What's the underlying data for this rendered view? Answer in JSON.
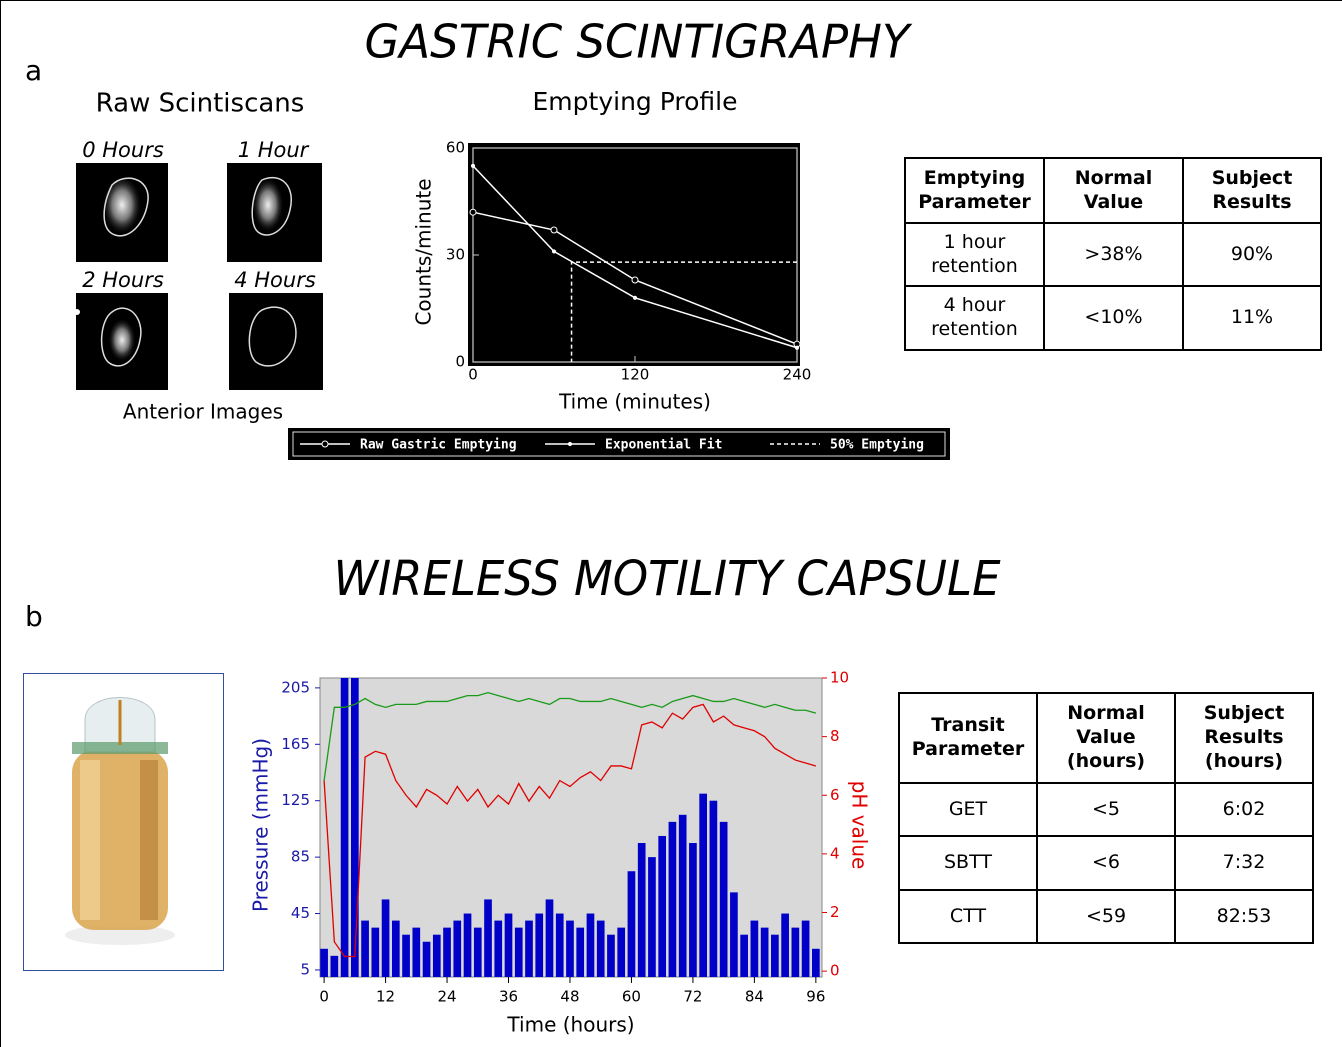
{
  "panel_a": {
    "label": "a",
    "title": "GASTRIC SCINTIGRAPHY",
    "scans_title": "Raw Scintiscans",
    "scan_labels": [
      "0 Hours",
      "1 Hour",
      "2 Hours",
      "4 Hours"
    ],
    "scans_caption": "Anterior Images",
    "table": {
      "header": [
        "Emptying Parameter",
        "Normal Value",
        "Subject Results"
      ],
      "rows": [
        [
          "1 hour retention",
          ">38%",
          "90%"
        ],
        [
          "4 hour retention",
          "<10%",
          "11%"
        ]
      ]
    }
  },
  "panel_b": {
    "label": "b",
    "title": "WIRELESS MOTILITY CAPSULE",
    "table": {
      "header": [
        "Transit Parameter",
        "Normal Value (hours)",
        "Subject Results (hours)"
      ],
      "rows": [
        [
          "GET",
          "<5",
          "6:02"
        ],
        [
          "SBTT",
          "<6",
          "7:32"
        ],
        [
          "CTT",
          "<59",
          "82:53"
        ]
      ]
    }
  },
  "chart_data": [
    {
      "type": "line",
      "title": "Emptying Profile",
      "x_label": "Time (minutes)",
      "y_label": "Counts/minute",
      "xlim": [
        0,
        240
      ],
      "xticks": [
        0,
        120,
        240
      ],
      "ylim": [
        0,
        60
      ],
      "yticks": [
        0,
        30,
        60
      ],
      "background": "#000000",
      "legend": "below",
      "series": [
        {
          "name": "Raw Gastric Emptying",
          "color": "#ffffff",
          "marker": "circle",
          "x": [
            0,
            60,
            120,
            240
          ],
          "values": [
            42,
            37,
            23,
            5
          ]
        },
        {
          "name": "Exponential Fit",
          "color": "#ffffff",
          "marker": "dot",
          "x": [
            0,
            60,
            120,
            240
          ],
          "values": [
            55,
            31,
            18,
            4
          ]
        },
        {
          "name": "50% Emptying",
          "color": "#ffffff",
          "dash": true,
          "x": [
            240,
            73,
            73
          ],
          "values": [
            28,
            28,
            0
          ]
        }
      ]
    },
    {
      "type": "line",
      "x_label": "Time (hours)",
      "y_label": "Pressure (mmHg)",
      "y2_label": "pH value",
      "y_label_color": "#1a1aa8",
      "y2_label_color": "#e00000",
      "xlim": [
        -0.8,
        97.2
      ],
      "xticks": [
        0,
        12,
        24,
        36,
        48,
        60,
        72,
        84,
        96
      ],
      "ylim": [
        0,
        212
      ],
      "yticks": [
        5,
        45,
        85,
        125,
        165,
        205
      ],
      "y2lim": [
        -0.2,
        10
      ],
      "y2ticks": [
        0,
        2,
        4,
        6,
        8,
        10
      ],
      "background": "#d9d9d9",
      "x": [
        0,
        2,
        4,
        6,
        8,
        10,
        12,
        14,
        16,
        18,
        20,
        22,
        24,
        26,
        28,
        30,
        32,
        34,
        36,
        38,
        40,
        42,
        44,
        46,
        48,
        50,
        52,
        54,
        56,
        58,
        60,
        62,
        64,
        66,
        68,
        70,
        72,
        74,
        76,
        78,
        80,
        82,
        84,
        86,
        88,
        90,
        92,
        94,
        96
      ],
      "series": [
        {
          "type": "bar",
          "color": "#0000c8",
          "values": [
            20,
            15,
            212,
            212,
            40,
            35,
            55,
            40,
            30,
            35,
            25,
            30,
            35,
            40,
            45,
            35,
            55,
            40,
            45,
            35,
            40,
            45,
            55,
            45,
            40,
            35,
            45,
            40,
            30,
            35,
            75,
            95,
            85,
            100,
            110,
            115,
            95,
            130,
            125,
            110,
            60,
            30,
            40,
            35,
            30,
            45,
            35,
            40,
            20
          ]
        },
        {
          "type": "line",
          "axis": "y2",
          "color": "#1a9a1a",
          "values": [
            6.5,
            9.0,
            9.0,
            9.1,
            9.3,
            9.1,
            9.0,
            9.1,
            9.1,
            9.1,
            9.2,
            9.2,
            9.2,
            9.3,
            9.4,
            9.4,
            9.5,
            9.4,
            9.3,
            9.2,
            9.3,
            9.2,
            9.1,
            9.3,
            9.3,
            9.2,
            9.2,
            9.2,
            9.3,
            9.2,
            9.1,
            9.0,
            9.1,
            9.0,
            9.2,
            9.3,
            9.4,
            9.3,
            9.2,
            9.2,
            9.3,
            9.2,
            9.1,
            9.0,
            9.1,
            9.0,
            8.9,
            8.9,
            8.8
          ]
        },
        {
          "type": "line",
          "axis": "y2",
          "color": "#e00000",
          "values": [
            6.5,
            1,
            0.5,
            0.5,
            7.3,
            7.5,
            7.4,
            6.5,
            6,
            5.6,
            6.2,
            6,
            5.7,
            6.3,
            5.8,
            6.2,
            5.6,
            6,
            5.7,
            6.4,
            5.8,
            6.3,
            5.9,
            6.5,
            6.3,
            6.6,
            6.8,
            6.5,
            7,
            7,
            6.9,
            8.4,
            8.5,
            8.3,
            8.8,
            8.6,
            9,
            9.1,
            8.5,
            8.7,
            8.4,
            8.3,
            8.2,
            8,
            7.6,
            7.4,
            7.2,
            7.1,
            7.0
          ]
        }
      ]
    }
  ]
}
